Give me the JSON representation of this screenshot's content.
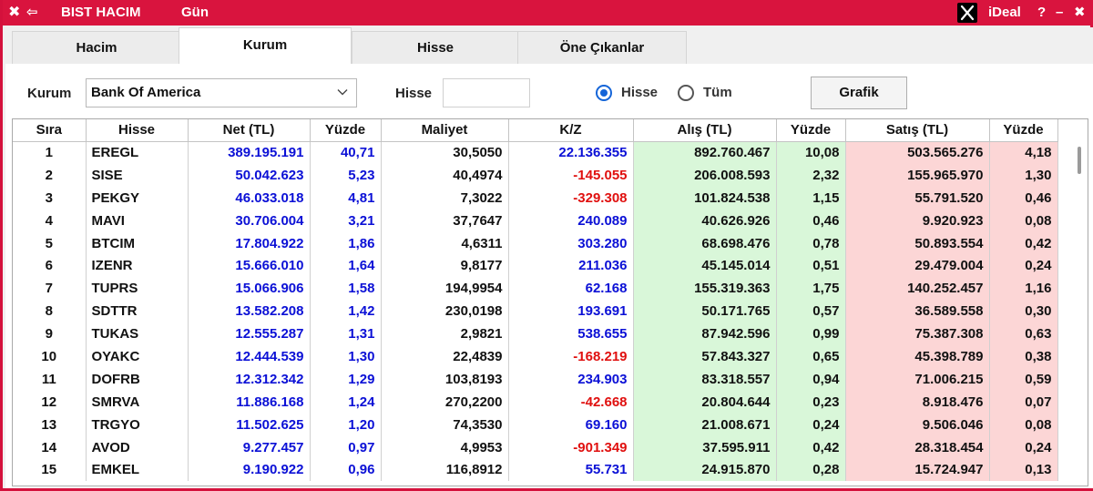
{
  "titlebar": {
    "close_glyph": "✖",
    "back_glyph": "⇦",
    "title": "BIST HACIM",
    "period": "Gün",
    "brand": "iDeal",
    "help": "?",
    "minimize": "–",
    "close2": "✖"
  },
  "tabs": [
    {
      "label": "Hacim",
      "active": false
    },
    {
      "label": "Kurum",
      "active": true
    },
    {
      "label": "Hisse",
      "active": false
    },
    {
      "label": "Öne Çıkanlar",
      "active": false
    }
  ],
  "filters": {
    "kurum_label": "Kurum",
    "kurum_value": "Bank Of America",
    "hisse_label": "Hisse",
    "hisse_value": "",
    "radio_hisse_label": "Hisse",
    "radio_tum_label": "Tüm",
    "radio_selected": "Hisse",
    "grafik_label": "Grafik"
  },
  "colors": {
    "titlebar": "#d9143e",
    "positive_text": "#0b10d6",
    "negative_text": "#e0100f",
    "buy_bg": "#d9f7d9",
    "sell_bg": "#fcd6d6"
  },
  "table": {
    "headers": [
      "Sıra",
      "Hisse",
      "Net (TL)",
      "Yüzde",
      "Maliyet",
      "K/Z",
      "Alış (TL)",
      "Yüzde",
      "Satış (TL)",
      "Yüzde"
    ],
    "rows": [
      [
        "1",
        "EREGL",
        "389.195.191",
        "40,71",
        "30,5050",
        "22.136.355",
        "892.760.467",
        "10,08",
        "503.565.276",
        "4,18"
      ],
      [
        "2",
        "SISE",
        "50.042.623",
        "5,23",
        "40,4974",
        "-145.055",
        "206.008.593",
        "2,32",
        "155.965.970",
        "1,30"
      ],
      [
        "3",
        "PEKGY",
        "46.033.018",
        "4,81",
        "7,3022",
        "-329.308",
        "101.824.538",
        "1,15",
        "55.791.520",
        "0,46"
      ],
      [
        "4",
        "MAVI",
        "30.706.004",
        "3,21",
        "37,7647",
        "240.089",
        "40.626.926",
        "0,46",
        "9.920.923",
        "0,08"
      ],
      [
        "5",
        "BTCIM",
        "17.804.922",
        "1,86",
        "4,6311",
        "303.280",
        "68.698.476",
        "0,78",
        "50.893.554",
        "0,42"
      ],
      [
        "6",
        "IZENR",
        "15.666.010",
        "1,64",
        "9,8177",
        "211.036",
        "45.145.014",
        "0,51",
        "29.479.004",
        "0,24"
      ],
      [
        "7",
        "TUPRS",
        "15.066.906",
        "1,58",
        "194,9954",
        "62.168",
        "155.319.363",
        "1,75",
        "140.252.457",
        "1,16"
      ],
      [
        "8",
        "SDTTR",
        "13.582.208",
        "1,42",
        "230,0198",
        "193.691",
        "50.171.765",
        "0,57",
        "36.589.558",
        "0,30"
      ],
      [
        "9",
        "TUKAS",
        "12.555.287",
        "1,31",
        "2,9821",
        "538.655",
        "87.942.596",
        "0,99",
        "75.387.308",
        "0,63"
      ],
      [
        "10",
        "OYAKC",
        "12.444.539",
        "1,30",
        "22,4839",
        "-168.219",
        "57.843.327",
        "0,65",
        "45.398.789",
        "0,38"
      ],
      [
        "11",
        "DOFRB",
        "12.312.342",
        "1,29",
        "103,8193",
        "234.903",
        "83.318.557",
        "0,94",
        "71.006.215",
        "0,59"
      ],
      [
        "12",
        "SMRVA",
        "11.886.168",
        "1,24",
        "270,2200",
        "-42.668",
        "20.804.644",
        "0,23",
        "8.918.476",
        "0,07"
      ],
      [
        "13",
        "TRGYO",
        "11.502.625",
        "1,20",
        "74,3530",
        "69.160",
        "21.008.671",
        "0,24",
        "9.506.046",
        "0,08"
      ],
      [
        "14",
        "AVOD",
        "9.277.457",
        "0,97",
        "4,9953",
        "-901.349",
        "37.595.911",
        "0,42",
        "28.318.454",
        "0,24"
      ],
      [
        "15",
        "EMKEL",
        "9.190.922",
        "0,96",
        "116,8912",
        "55.731",
        "24.915.870",
        "0,28",
        "15.724.947",
        "0,13"
      ]
    ]
  }
}
